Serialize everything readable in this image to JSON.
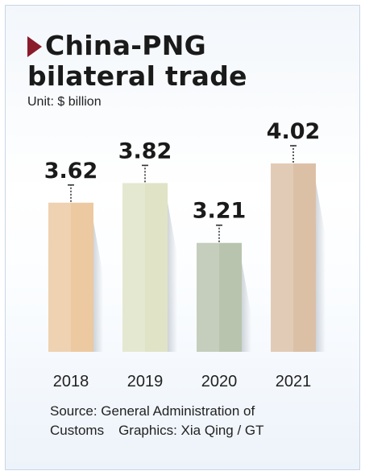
{
  "header": {
    "title": "China-PNG bilateral trade",
    "unit": "Unit: $ billion"
  },
  "footer": {
    "source": "Source: General Administration of Customs",
    "credit": "Graphics: Xia Qing / GT"
  },
  "colors": {
    "marker": "#8a1b2b",
    "bar_2018": "#ecc9a0",
    "bar_2019": "#e0e3c6",
    "bar_2020": "#b9c4ae",
    "bar_2021": "#dcc0a6"
  },
  "chart_data": {
    "type": "bar",
    "title": "China-PNG bilateral trade",
    "ylabel": "Unit: $ billion",
    "xlabel": "",
    "categories": [
      "2018",
      "2019",
      "2020",
      "2021"
    ],
    "values": [
      3.62,
      3.82,
      3.21,
      4.02
    ],
    "value_labels": [
      "3.62",
      "3.82",
      "3.21",
      "4.02"
    ],
    "ylim": [
      2.1,
      4.25
    ],
    "grid": false,
    "legend": "none"
  }
}
